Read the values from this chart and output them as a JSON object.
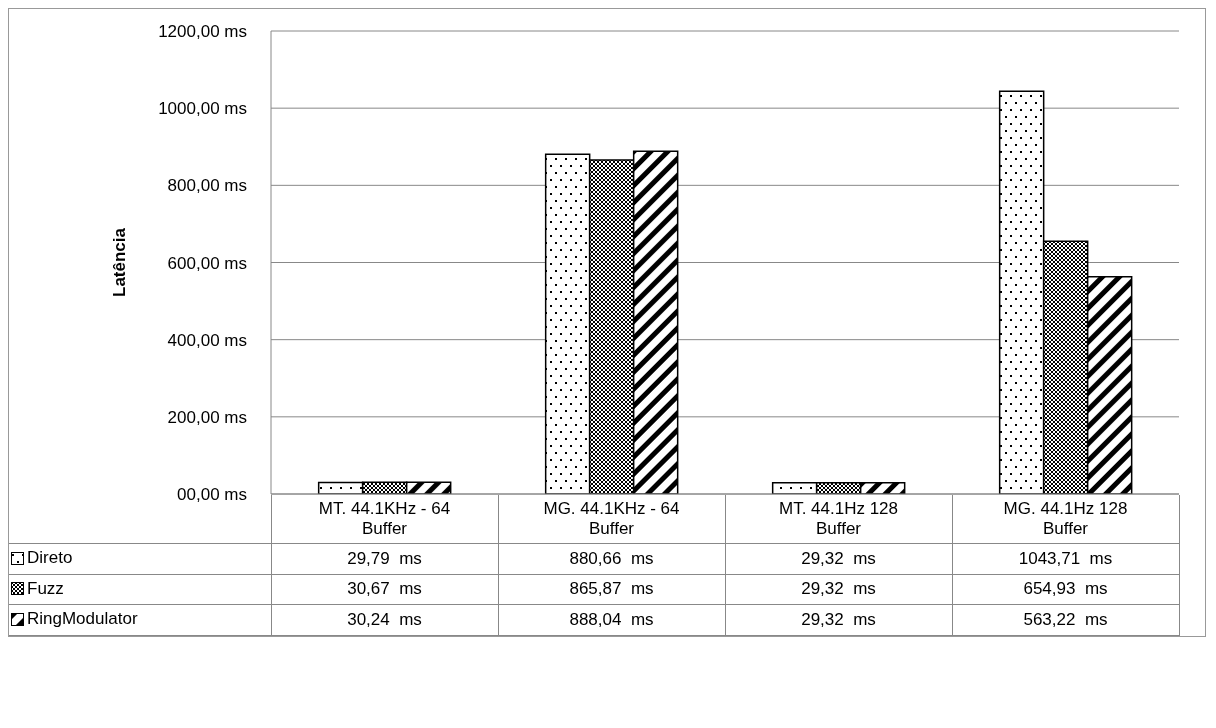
{
  "chart_data": {
    "type": "bar",
    "ylabel": "Latência",
    "categories": [
      "MT. 44.1KHz - 64 Buffer",
      "MG. 44.1KHz - 64 Buffer",
      "MT. 44.1Hz 128  Buffer",
      "MG. 44.1Hz 128 Buffer"
    ],
    "series": [
      {
        "name": "Direto",
        "color": "#000000",
        "values": [
          29.79,
          880.66,
          29.32,
          1043.71
        ],
        "value_labels": [
          "29,79  ms",
          "880,66  ms",
          "29,32  ms",
          "1043,71  ms"
        ]
      },
      {
        "name": "Fuzz",
        "color": "#000000",
        "values": [
          30.67,
          865.87,
          29.32,
          654.93
        ],
        "value_labels": [
          "30,67  ms",
          "865,87  ms",
          "29,32  ms",
          "654,93  ms"
        ]
      },
      {
        "name": "RingModulator",
        "color": "#000000",
        "values": [
          30.24,
          888.04,
          29.32,
          563.22
        ],
        "value_labels": [
          "30,24  ms",
          "888,04  ms",
          "29,32  ms",
          "563,22  ms"
        ]
      }
    ],
    "ylim": [
      0,
      1200
    ],
    "yticks": [
      {
        "value": 0,
        "label": "00,00  ms"
      },
      {
        "value": 200,
        "label": "200,00  ms"
      },
      {
        "value": 400,
        "label": "400,00  ms"
      },
      {
        "value": 600,
        "label": "600,00  ms"
      },
      {
        "value": 800,
        "label": "800,00  ms"
      },
      {
        "value": 1000,
        "label": "1000,00  ms"
      },
      {
        "value": 1200,
        "label": "1200,00  ms"
      }
    ],
    "grid": "y",
    "legend": "bottom"
  }
}
